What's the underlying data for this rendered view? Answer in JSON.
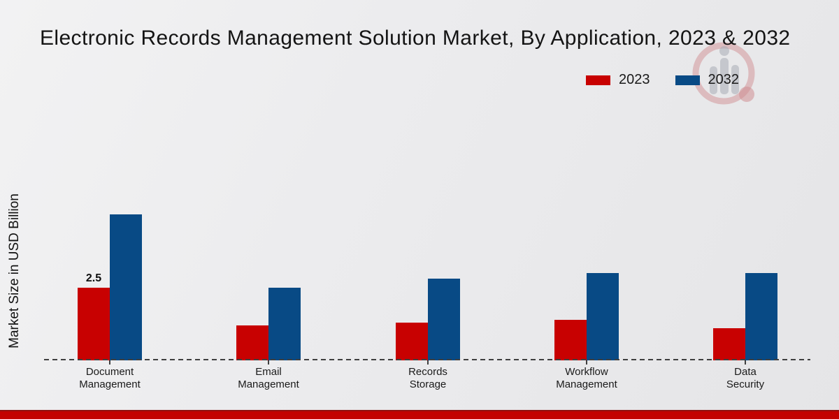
{
  "chart_data": {
    "type": "bar",
    "title": "Electronic Records Management Solution Market, By Application, 2023 & 2032",
    "ylabel": "Market Size in USD Billion",
    "xlabel": "",
    "categories": [
      "Document Management",
      "Email Management",
      "Records Storage",
      "Workflow Management",
      "Data Security"
    ],
    "series": [
      {
        "name": "2023",
        "color": "#c80101",
        "values": [
          2.5,
          1.2,
          1.3,
          1.4,
          1.1
        ]
      },
      {
        "name": "2032",
        "color": "#084a85",
        "values": [
          5.0,
          2.5,
          2.8,
          3.0,
          3.0
        ]
      }
    ],
    "annotations": [
      {
        "series_index": 0,
        "category_index": 0,
        "text": "2.5"
      }
    ],
    "ylim": [
      0,
      6
    ],
    "grid": false,
    "legend_position": "top-right",
    "axis_style": "dashed-baseline-only"
  },
  "footer": {
    "accent_color": "#c30101"
  },
  "watermark": {
    "name": "market-research-logo"
  }
}
